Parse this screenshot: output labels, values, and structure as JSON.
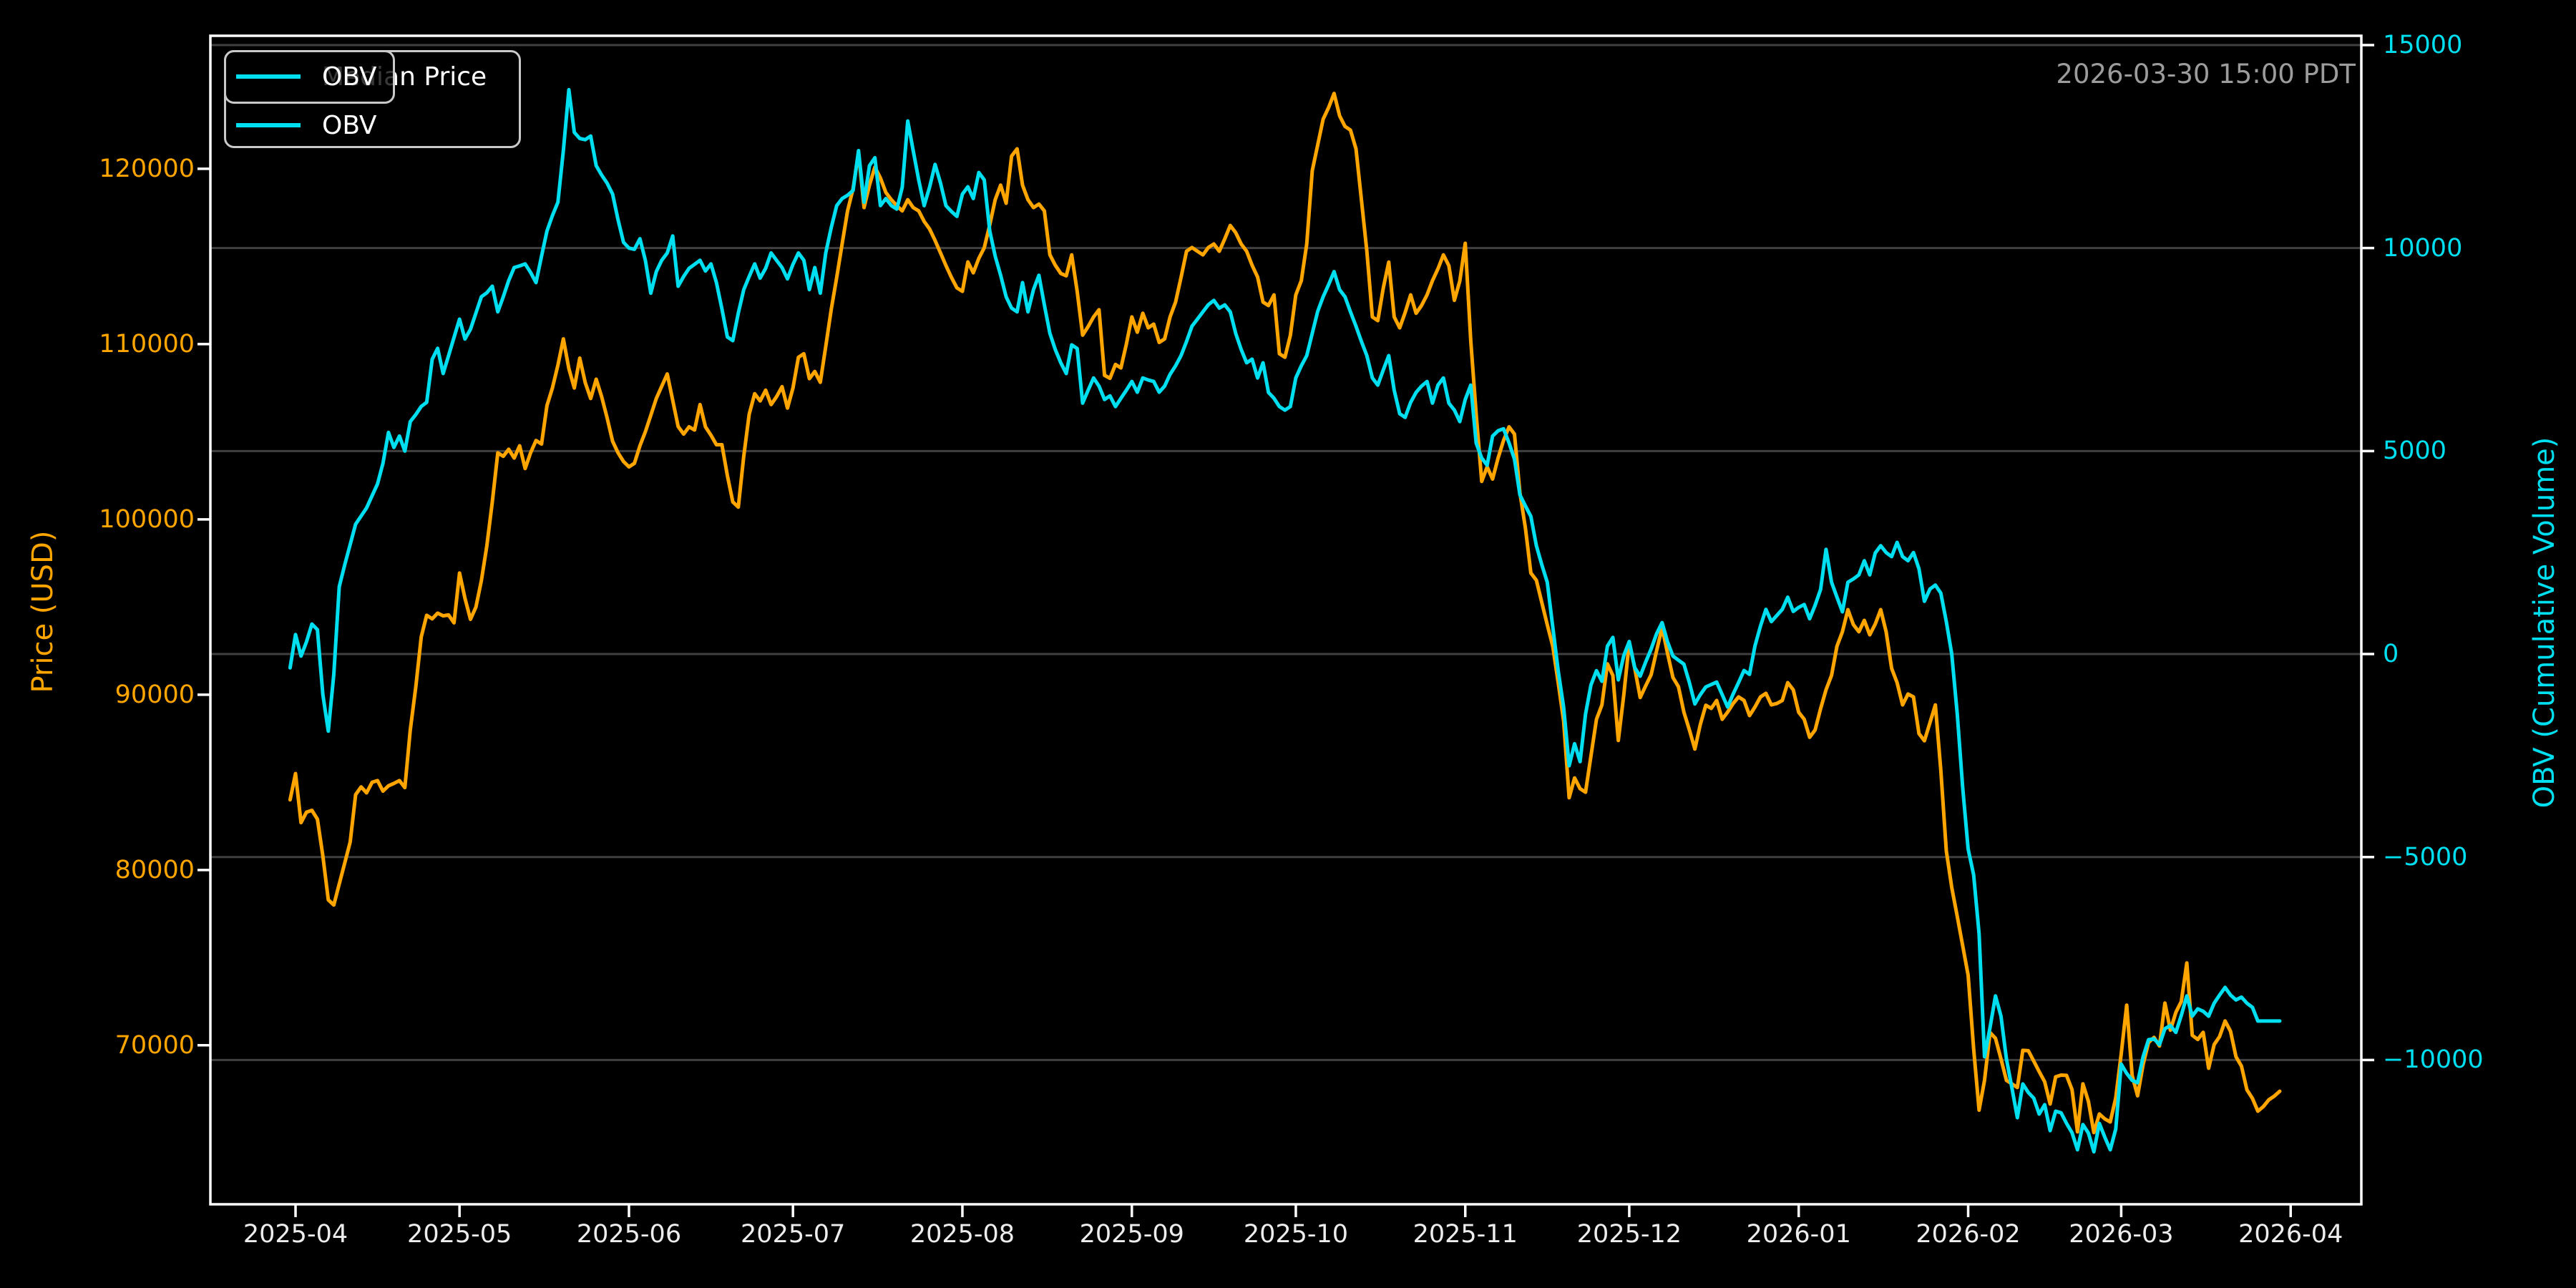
{
  "timestamp": {
    "text": "2026-03-30 15:00 PDT",
    "color": "#9c9c9c"
  },
  "legend": {
    "outer": {
      "entries": [
        {
          "label": "Median Price",
          "color": "#FFA500"
        },
        {
          "label": "OBV",
          "color": "#00DFF0"
        }
      ]
    },
    "overlay": {
      "entries": [
        {
          "label": "OBV",
          "color": "#00DFF0"
        }
      ]
    }
  },
  "chart_data": {
    "type": "line",
    "title": "",
    "grid": "horizontal-on-right-axis-ticks",
    "legend_position": "upper-left (two overlapping legend boxes)",
    "background": "#000000",
    "x_axis": {
      "unit": "days",
      "day0_date": "2025-04-01",
      "range_days": [
        -15.58,
        377.93
      ],
      "ticks": [
        {
          "day": 0,
          "label": "2025-04"
        },
        {
          "day": 30,
          "label": "2025-05"
        },
        {
          "day": 61,
          "label": "2025-06"
        },
        {
          "day": 91,
          "label": "2025-07"
        },
        {
          "day": 122,
          "label": "2025-08"
        },
        {
          "day": 153,
          "label": "2025-09"
        },
        {
          "day": 183,
          "label": "2025-10"
        },
        {
          "day": 214,
          "label": "2025-11"
        },
        {
          "day": 244,
          "label": "2025-12"
        },
        {
          "day": 275,
          "label": "2026-01"
        },
        {
          "day": 306,
          "label": "2026-02"
        },
        {
          "day": 334,
          "label": "2026-03"
        },
        {
          "day": 365,
          "label": "2026-04"
        }
      ]
    },
    "left_axis": {
      "label": "Price (USD)",
      "color": "#FFA500",
      "range": [
        60930,
        127590
      ],
      "ticks": [
        {
          "value": 120000,
          "label": "120000"
        },
        {
          "value": 110000,
          "label": "110000"
        },
        {
          "value": 100000,
          "label": "100000"
        },
        {
          "value": 90000,
          "label": "90000"
        },
        {
          "value": 80000,
          "label": "80000"
        },
        {
          "value": 70000,
          "label": "70000"
        }
      ]
    },
    "right_axis": {
      "label": "OBV (Cumulative Volume)",
      "color": "#00DFF0",
      "range": [
        -13553,
        15229
      ],
      "gridlines": true,
      "grid_color": "#404040",
      "ticks": [
        {
          "value": 15000,
          "label": "15000"
        },
        {
          "value": 10000,
          "label": "10000"
        },
        {
          "value": 5000,
          "label": "5000"
        },
        {
          "value": 0,
          "label": "0"
        },
        {
          "value": -5000,
          "label": "−5000"
        },
        {
          "value": -10000,
          "label": "−10000"
        }
      ]
    },
    "series": [
      {
        "name": "Median Price",
        "axis": "left",
        "color": "#FFA500",
        "start_day": -1,
        "values": [
          84000,
          85500,
          82700,
          83300,
          83400,
          82900,
          80800,
          78300,
          78000,
          79200,
          80400,
          81600,
          84300,
          84740,
          84400,
          85000,
          85100,
          84500,
          84800,
          84940,
          85100,
          84700,
          88000,
          90450,
          93300,
          94530,
          94330,
          94650,
          94500,
          94550,
          94100,
          96940,
          95500,
          94300,
          95000,
          96500,
          98500,
          101000,
          103800,
          103600,
          104000,
          103500,
          104200,
          102900,
          103800,
          104500,
          104300,
          106500,
          107500,
          108800,
          110300,
          108600,
          107500,
          109200,
          107800,
          106900,
          108000,
          107000,
          105800,
          104460,
          103800,
          103300,
          103000,
          103200,
          104200,
          105000,
          105940,
          106900,
          107600,
          108300,
          106800,
          105300,
          104870,
          105280,
          105100,
          106550,
          105280,
          104800,
          104260,
          104260,
          102500,
          101000,
          100700,
          103600,
          106000,
          107170,
          106760,
          107370,
          106550,
          107000,
          107570,
          106350,
          107500,
          109250,
          109450,
          108030,
          108440,
          107820,
          109870,
          111960,
          113800,
          115720,
          117600,
          118870,
          120940,
          117790,
          119070,
          120100,
          119480,
          118650,
          118240,
          117900,
          117600,
          118240,
          117790,
          117600,
          117000,
          116570,
          115910,
          115200,
          114480,
          113800,
          113210,
          113010,
          114690,
          114070,
          114890,
          115500,
          116800,
          118240,
          119070,
          118040,
          120730,
          121140,
          119070,
          118240,
          117790,
          117990,
          117600,
          115100,
          114500,
          114030,
          113900,
          115090,
          113000,
          110510,
          111000,
          111550,
          111960,
          108220,
          108050,
          108840,
          108640,
          110000,
          111550,
          110680,
          111760,
          110930,
          111140,
          110100,
          110300,
          111550,
          112400,
          113800,
          115300,
          115510,
          115300,
          115090,
          115510,
          115710,
          115300,
          116000,
          116770,
          116360,
          115710,
          115300,
          114500,
          113830,
          112400,
          112200,
          112810,
          109450,
          109250,
          110500,
          112810,
          113620,
          115710,
          119890,
          121360,
          122830,
          123500,
          124300,
          123030,
          122420,
          122210,
          121140,
          118240,
          115300,
          111550,
          111340,
          113210,
          114680,
          111550,
          110930,
          111800,
          112810,
          111760,
          112200,
          112810,
          113620,
          114300,
          115090,
          114480,
          112500,
          113600,
          115750,
          110200,
          106000,
          102170,
          103000,
          102300,
          103500,
          104500,
          105280,
          104870,
          101520,
          99500,
          96940,
          96530,
          95260,
          94000,
          92770,
          90690,
          88500,
          84120,
          85250,
          84640,
          84440,
          86510,
          88600,
          89420,
          91760,
          91100,
          87390,
          90000,
          92980,
          91500,
          89840,
          90500,
          91140,
          92500,
          93830,
          92360,
          90980,
          90450,
          89000,
          88000,
          86900,
          88300,
          89400,
          89220,
          89670,
          88600,
          89010,
          89500,
          89870,
          89670,
          88810,
          89300,
          89870,
          90080,
          89420,
          89500,
          89670,
          90690,
          90280,
          89000,
          88600,
          87570,
          87980,
          89200,
          90280,
          91100,
          92770,
          93590,
          94850,
          94000,
          93590,
          94240,
          93420,
          94030,
          94850,
          93590,
          91500,
          90690,
          89420,
          90040,
          89870,
          87780,
          87370,
          88400,
          89420,
          85700,
          81090,
          79000,
          77350,
          75680,
          74000,
          69800,
          66300,
          68000,
          70730,
          70400,
          69220,
          68000,
          67800,
          67590,
          69710,
          69690,
          69100,
          68500,
          67920,
          66650,
          68200,
          68300,
          68280,
          67470,
          65060,
          67800,
          66800,
          65020,
          66080,
          65800,
          65630,
          67000,
          69500,
          72290,
          68280,
          67120,
          68900,
          70160,
          70450,
          69960,
          72410,
          70860,
          71880,
          72500,
          74700,
          70570,
          70330,
          70740,
          68690,
          70040,
          70500,
          71390,
          70800,
          69350,
          68810,
          67460,
          66970,
          66240,
          66500,
          66890,
          67100,
          67380
        ]
      },
      {
        "name": "OBV",
        "axis": "right",
        "color": "#00DFF0",
        "start_day": -1,
        "values": [
          -340,
          480,
          -50,
          300,
          740,
          600,
          -1000,
          -1900,
          -500,
          1660,
          2200,
          2700,
          3200,
          3400,
          3600,
          3900,
          4190,
          4700,
          5460,
          5090,
          5370,
          5000,
          5725,
          5900,
          6100,
          6200,
          7260,
          7530,
          6910,
          7350,
          7800,
          8250,
          7760,
          8000,
          8400,
          8800,
          8900,
          9060,
          8430,
          8800,
          9200,
          9520,
          9560,
          9610,
          9400,
          9150,
          9800,
          10420,
          10800,
          11130,
          12400,
          13900,
          12850,
          12700,
          12670,
          12760,
          12030,
          11800,
          11600,
          11330,
          10700,
          10140,
          10000,
          9970,
          10230,
          9700,
          8890,
          9420,
          9700,
          9880,
          10300,
          9060,
          9300,
          9500,
          9600,
          9700,
          9435,
          9610,
          9150,
          8500,
          7810,
          7720,
          8400,
          8975,
          9300,
          9610,
          9260,
          9500,
          9880,
          9700,
          9520,
          9240,
          9600,
          9880,
          9700,
          8975,
          9520,
          8890,
          9880,
          10500,
          11045,
          11220,
          11300,
          11420,
          12400,
          11130,
          12030,
          12225,
          11045,
          11220,
          11045,
          10960,
          11500,
          13130,
          12400,
          11680,
          11045,
          11500,
          12060,
          11600,
          11045,
          10900,
          10780,
          11330,
          11510,
          11220,
          11860,
          11680,
          10420,
          9800,
          9330,
          8800,
          8520,
          8430,
          9150,
          8430,
          8975,
          9330,
          8600,
          7900,
          7500,
          7175,
          6910,
          7615,
          7525,
          6180,
          6500,
          6800,
          6600,
          6270,
          6360,
          6095,
          6300,
          6500,
          6715,
          6450,
          6800,
          6750,
          6715,
          6450,
          6600,
          6890,
          7100,
          7350,
          7700,
          8075,
          8250,
          8430,
          8605,
          8710,
          8520,
          8600,
          8430,
          7900,
          7500,
          7175,
          7265,
          6800,
          7175,
          6445,
          6300,
          6095,
          6010,
          6095,
          6800,
          7100,
          7350,
          7900,
          8440,
          8800,
          9100,
          9420,
          8975,
          8800,
          8430,
          8075,
          7700,
          7350,
          6800,
          6625,
          7000,
          7350,
          6500,
          5920,
          5830,
          6200,
          6445,
          6600,
          6715,
          6180,
          6625,
          6800,
          6180,
          6010,
          5725,
          6270,
          6625,
          5195,
          4830,
          4650,
          5370,
          5500,
          5550,
          5200,
          4800,
          3920,
          3650,
          3390,
          2670,
          2200,
          1770,
          670,
          -410,
          -1310,
          -2750,
          -2210,
          -2650,
          -1480,
          -760,
          -410,
          -670,
          195,
          410,
          -635,
          -35,
          310,
          -335,
          -545,
          -200,
          125,
          500,
          775,
          300,
          -50,
          -150,
          -250,
          -700,
          -1230,
          -1000,
          -810,
          -750,
          -690,
          -1000,
          -1305,
          -985,
          -700,
          -405,
          -500,
          200,
          690,
          1100,
          800,
          950,
          1100,
          1400,
          1050,
          1150,
          1220,
          870,
          1200,
          1590,
          2580,
          1770,
          1400,
          1040,
          1770,
          1850,
          1950,
          2300,
          1950,
          2490,
          2670,
          2500,
          2400,
          2750,
          2400,
          2300,
          2500,
          2100,
          1300,
          1600,
          1700,
          1500,
          800,
          0,
          -1480,
          -3290,
          -4800,
          -5440,
          -6890,
          -9920,
          -9200,
          -8420,
          -8920,
          -9970,
          -10680,
          -11420,
          -10590,
          -10800,
          -10940,
          -11330,
          -11100,
          -11740,
          -11260,
          -11300,
          -11560,
          -11790,
          -12210,
          -11590,
          -11800,
          -12260,
          -11560,
          -11900,
          -12210,
          -11700,
          -10100,
          -10330,
          -10500,
          -10560,
          -9920,
          -9500,
          -9480,
          -9620,
          -9230,
          -9150,
          -9320,
          -8900,
          -8420,
          -8920,
          -8740,
          -8800,
          -8920,
          -8600,
          -8400,
          -8210,
          -8400,
          -8520,
          -8450,
          -8600,
          -8700,
          -9040,
          -9040,
          -9040,
          -9040,
          -9040
        ]
      }
    ]
  }
}
